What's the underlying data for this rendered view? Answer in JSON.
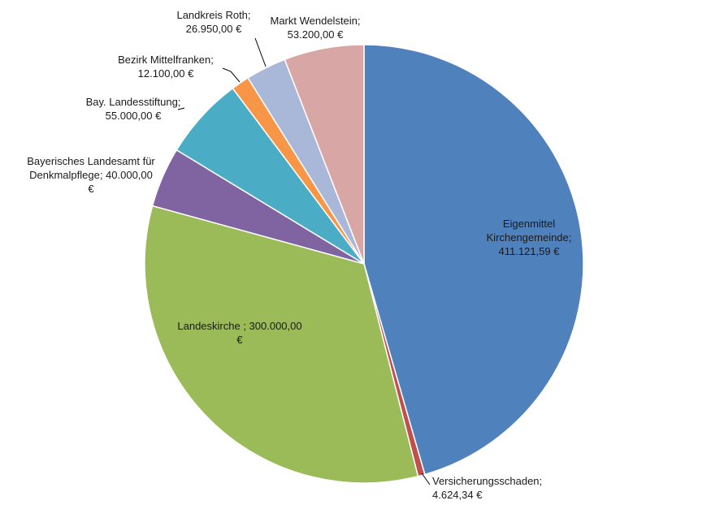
{
  "chart_data": {
    "type": "pie",
    "slices": [
      {
        "label": "Eigenmittel Kirchengemeinde",
        "value": 411121.59,
        "value_text": "411.121,59",
        "currency": "€",
        "color": "#4f81bd"
      },
      {
        "label": "Versicherungsschaden",
        "value": 4624.34,
        "value_text": "4.624,34",
        "currency": "€",
        "color": "#c0504d"
      },
      {
        "label": "Landeskirche",
        "value": 300000.0,
        "value_text": "300.000,00",
        "currency": "€",
        "color": "#9bbb59"
      },
      {
        "label": "Bayerisches Landesamt für Denkmalpflege",
        "value": 40000.0,
        "value_text": "40.000,00",
        "currency": "€",
        "color": "#8064a2"
      },
      {
        "label": "Bay. Landesstiftung",
        "value": 55000.0,
        "value_text": "55.000,00",
        "currency": "€",
        "color": "#4bacc6"
      },
      {
        "label": "Bezirk Mittelfranken",
        "value": 12100.0,
        "value_text": "12.100,00",
        "currency": "€",
        "color": "#f79646"
      },
      {
        "label": "Landkreis Roth",
        "value": 26950.0,
        "value_text": "26.950,00",
        "currency": "€",
        "color": "#a9b8d9"
      },
      {
        "label": "Markt Wendelstein",
        "value": 53200.0,
        "value_text": "53.200,00",
        "currency": "€",
        "color": "#d9a6a6"
      }
    ],
    "data_labels": [
      [
        "Eigenmittel",
        "Kirchengemeinde;",
        "411.121,59  €"
      ],
      [
        "Versicherungsschaden;",
        "4.624,34  €"
      ],
      [
        "Landeskirche ;  300.000,00",
        "€"
      ],
      [
        "Bayerisches Landesamt für",
        "Denkmalpflege;  40.000,00",
        "€"
      ],
      [
        "Bay. Landesstiftung;",
        "55.000,00  €"
      ],
      [
        "Bezirk Mittelfranken;",
        "12.100,00  €"
      ],
      [
        "Landkreis Roth;",
        "26.950,00  €"
      ],
      [
        "Markt Wendelstein;",
        "53.200,00  €"
      ]
    ],
    "start": "12 o'clock",
    "direction": "clockwise",
    "legend": "none"
  }
}
